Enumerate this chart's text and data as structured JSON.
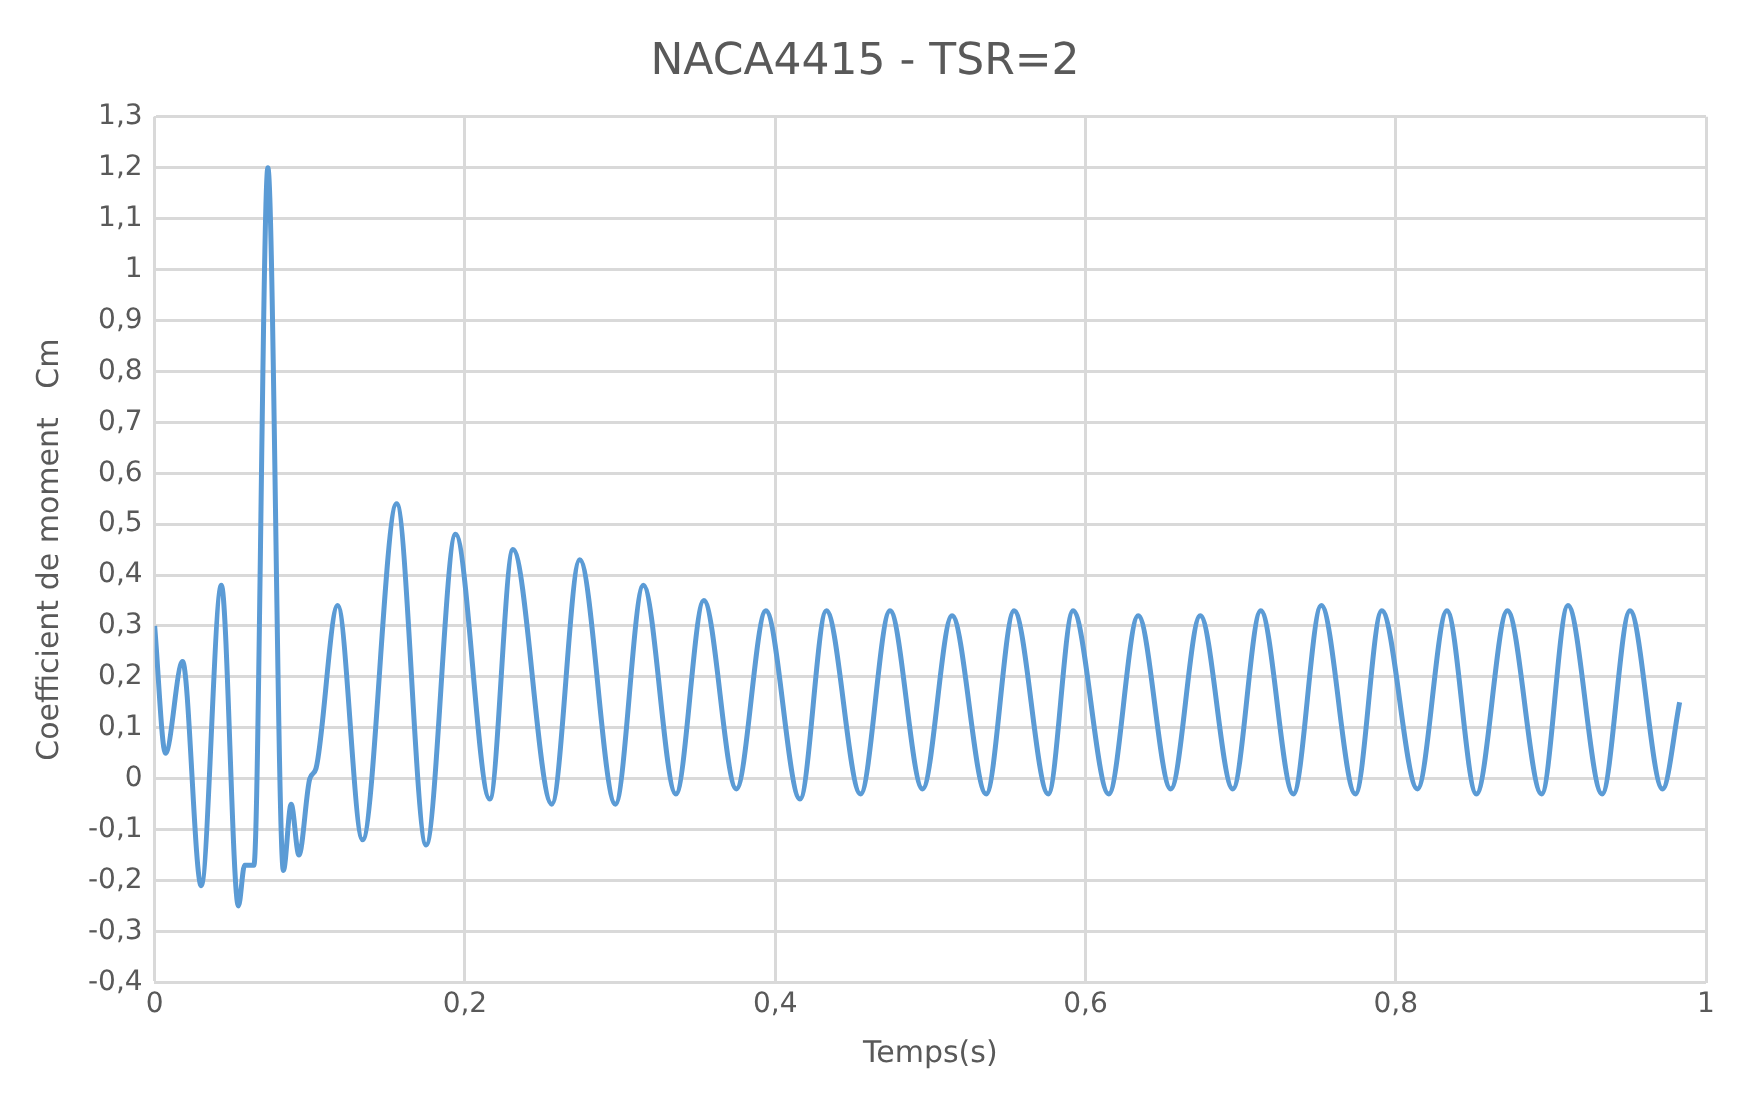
{
  "chart_data": {
    "type": "line",
    "title": "NACA4415 - TSR=2",
    "xlabel": "Temps(s)",
    "ylabel": "Coefficient de moment   Cm",
    "x": [
      0,
      0.007,
      0.018,
      0.03,
      0.043,
      0.054,
      0.058,
      0.064,
      0.073,
      0.083,
      0.088,
      0.093,
      0.1,
      0.104,
      0.118,
      0.134,
      0.156,
      0.175,
      0.194,
      0.216,
      0.231,
      0.256,
      0.274,
      0.297,
      0.315,
      0.336,
      0.354,
      0.375,
      0.394,
      0.416,
      0.433,
      0.455,
      0.474,
      0.495,
      0.514,
      0.536,
      0.554,
      0.576,
      0.592,
      0.615,
      0.634,
      0.655,
      0.674,
      0.695,
      0.713,
      0.734,
      0.752,
      0.774,
      0.791,
      0.814,
      0.833,
      0.852,
      0.872,
      0.894,
      0.911,
      0.933,
      0.951,
      0.972,
      0.983
    ],
    "series": [
      {
        "color": "#5b9bd5",
        "values": [
          0.3,
          0.05,
          0.23,
          -0.21,
          0.38,
          -0.25,
          -0.17,
          -0.17,
          1.2,
          -0.18,
          -0.05,
          -0.15,
          0,
          0.02,
          0.34,
          -0.12,
          0.54,
          -0.13,
          0.48,
          -0.04,
          0.45,
          -0.05,
          0.43,
          -0.05,
          0.38,
          -0.03,
          0.35,
          -0.02,
          0.33,
          -0.04,
          0.33,
          -0.03,
          0.33,
          -0.02,
          0.32,
          -0.03,
          0.33,
          -0.03,
          0.33,
          -0.03,
          0.32,
          -0.02,
          0.32,
          -0.02,
          0.33,
          -0.03,
          0.34,
          -0.03,
          0.33,
          -0.02,
          0.33,
          -0.03,
          0.33,
          -0.03,
          0.34,
          -0.03,
          0.33,
          -0.02,
          0.15
        ]
      }
    ],
    "xlim": [
      0,
      1
    ],
    "xticks": [
      0,
      {
        "value": 0.2,
        "label": "0,2"
      },
      {
        "value": 0.4,
        "label": "0,4"
      },
      {
        "value": 0.6,
        "label": "0,6"
      },
      {
        "value": 0.8,
        "label": "0,8"
      },
      1
    ],
    "ylim": [
      -0.4,
      1.3
    ],
    "yticks": [
      {
        "value": -0.4,
        "label": "-0,4"
      },
      {
        "value": -0.3,
        "label": "-0,3"
      },
      {
        "value": -0.2,
        "label": "-0,2"
      },
      {
        "value": -0.1,
        "label": "-0,1"
      },
      0,
      {
        "value": 0.1,
        "label": "0,1"
      },
      {
        "value": 0.2,
        "label": "0,2"
      },
      {
        "value": 0.3,
        "label": "0,3"
      },
      {
        "value": 0.4,
        "label": "0,4"
      },
      {
        "value": 0.5,
        "label": "0,5"
      },
      {
        "value": 0.6,
        "label": "0,6"
      },
      {
        "value": 0.7,
        "label": "0,7"
      },
      {
        "value": 0.8,
        "label": "0,8"
      },
      {
        "value": 0.9,
        "label": "0,9"
      },
      1,
      {
        "value": 1.1,
        "label": "1,1"
      },
      {
        "value": 1.2,
        "label": "1,2"
      },
      {
        "value": 1.3,
        "label": "1,3"
      }
    ],
    "grid": true,
    "legend": false,
    "marker": "none",
    "line_style": "solid"
  }
}
